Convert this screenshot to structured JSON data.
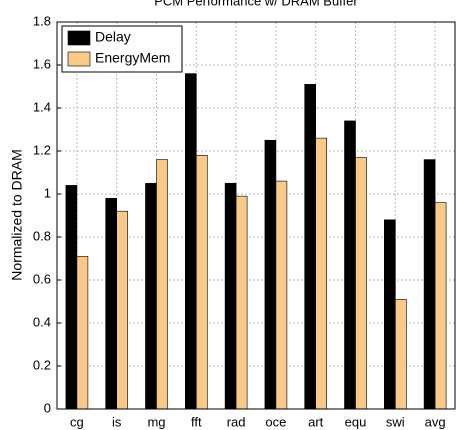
{
  "chart_data": {
    "type": "bar",
    "title": "PCM Performance w/ DRAM Buffer",
    "y_label": "Normalized to DRAM",
    "categories": [
      "cg",
      "is",
      "mg",
      "fft",
      "rad",
      "oce",
      "art",
      "equ",
      "swi",
      "avg"
    ],
    "series": [
      {
        "name": "Delay",
        "color": "#000000",
        "values": [
          1.04,
          0.98,
          1.05,
          1.56,
          1.05,
          1.25,
          1.51,
          1.34,
          0.88,
          1.16
        ]
      },
      {
        "name": "EnergyMem",
        "color": "#f9c98a",
        "values": [
          0.71,
          0.92,
          1.16,
          1.18,
          0.99,
          1.06,
          1.26,
          1.17,
          0.51,
          0.96
        ]
      }
    ],
    "ylim": [
      0,
      1.8
    ],
    "yticks": [
      0,
      0.2,
      0.4,
      0.6,
      0.8,
      1,
      1.2,
      1.4,
      1.6,
      1.8
    ],
    "grid": true,
    "legend": "upper-left"
  }
}
